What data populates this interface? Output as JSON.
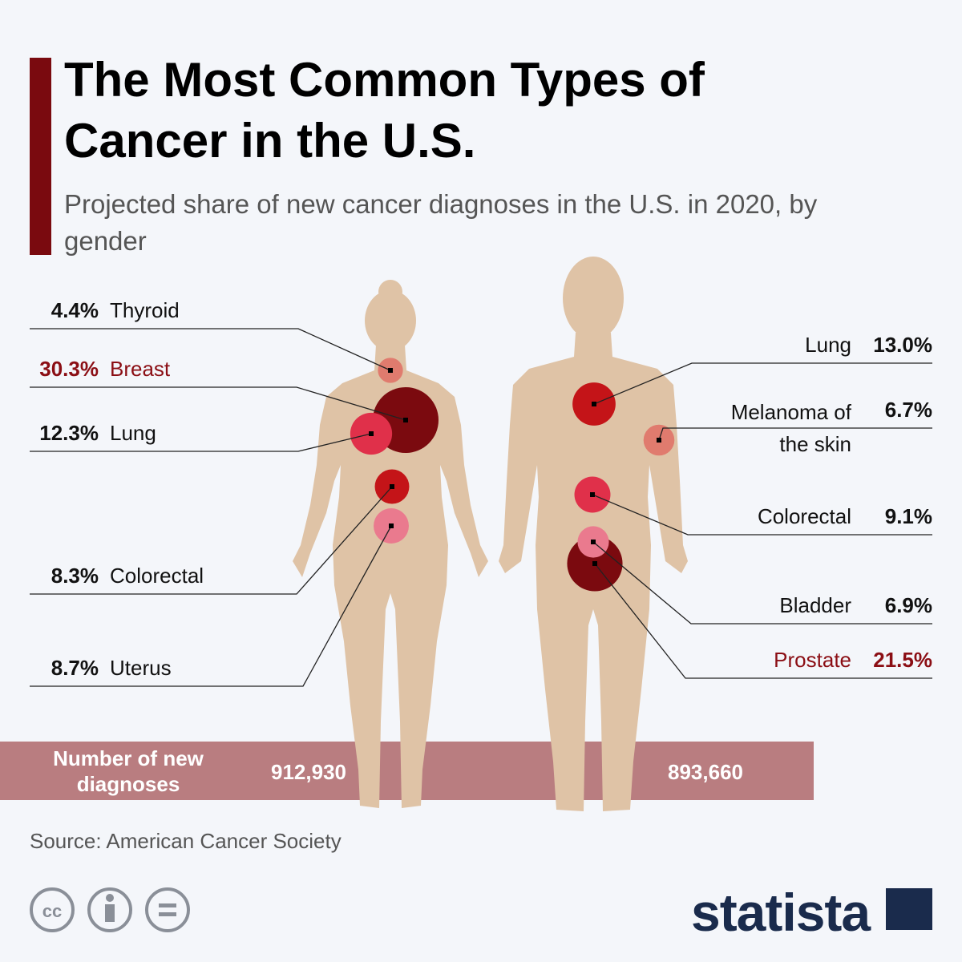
{
  "chart_data": {
    "type": "body-bubble",
    "title": "The Most Common Types of Cancer in the U.S.",
    "subtitle": "Projected share of new cancer diagnoses in the U.S. in 2020, by gender",
    "total_name": "Number of new diagnoses",
    "groups": [
      {
        "categories": [
          "Thyroid",
          "Breast",
          "Lung",
          "Colorectal",
          "Uterus"
        ],
        "values": [
          4.4,
          30.3,
          12.3,
          8.3,
          8.7
        ],
        "value_labels": [
          "4.4%",
          "30.3%",
          "12.3%",
          "8.3%",
          "8.7%"
        ],
        "colors": [
          "#e07b6e",
          "#7b0a0f",
          "#e0304a",
          "#c41418",
          "#ea7a8e"
        ],
        "label_colors": [
          "#111111",
          "#8b0e14",
          "#111111",
          "#111111",
          "#111111"
        ],
        "total": {
          "value": 912930,
          "label": "912,930"
        }
      },
      {
        "categories": [
          "Lung",
          "Melanoma of the skin",
          "Colorectal",
          "Bladder",
          "Prostate"
        ],
        "values": [
          13.0,
          6.7,
          9.1,
          6.9,
          21.5
        ],
        "value_labels": [
          "13.0%",
          "6.7%",
          "9.1%",
          "6.9%",
          "21.5%"
        ],
        "colors": [
          "#c41418",
          "#e07b6e",
          "#e0304a",
          "#ea7a8e",
          "#7b0a0f"
        ],
        "label_colors": [
          "#111111",
          "#111111",
          "#111111",
          "#111111",
          "#8b0e14"
        ],
        "total": {
          "value": 893660,
          "label": "893,660"
        }
      }
    ],
    "source": "Source: American Cancer Society",
    "brand": "statista"
  }
}
